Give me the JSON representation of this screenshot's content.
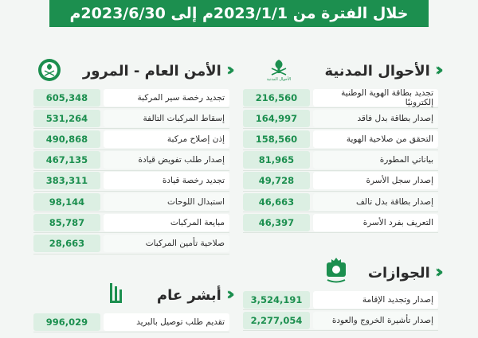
{
  "banner": {
    "title": "خلال الفترة من 2023/1/1م إلى 2023/6/30م"
  },
  "civil_affairs": {
    "title": "الأحوال المدنية",
    "emblem_caption": "الأحوال المدنية",
    "rows": [
      {
        "label": "تجديد بطاقة الهوية الوطنية إلكترونيًا",
        "value": "216,560"
      },
      {
        "label": "إصدار بطاقة بدل فاقد",
        "value": "164,997"
      },
      {
        "label": "التحقق من صلاحية الهوية",
        "value": "158,560"
      },
      {
        "label": "بياناتي المطورة",
        "value": "81,965"
      },
      {
        "label": "إصدار سجل الأسرة",
        "value": "49,728"
      },
      {
        "label": "إصدار بطاقة بدل تالف",
        "value": "46,663"
      },
      {
        "label": "التعريف بفرد الأسرة",
        "value": "46,397"
      }
    ]
  },
  "traffic": {
    "title": "الأمن العام - المرور",
    "rows": [
      {
        "label": "تجديد رخصة سير المركبة",
        "value": "605,348"
      },
      {
        "label": "إسقاط المركبات التالفة",
        "value": "531,264"
      },
      {
        "label": "إذن إصلاح مركبة",
        "value": "490,868"
      },
      {
        "label": "إصدار طلب تفويض قيادة",
        "value": "467,135"
      },
      {
        "label": "تجديد رخصة قيادة",
        "value": "383,311"
      },
      {
        "label": "استبدال اللوحات",
        "value": "98,144"
      },
      {
        "label": "مبايعة المركبات",
        "value": "85,787"
      },
      {
        "label": "صلاحية تأمين المركبات",
        "value": "28,663"
      }
    ]
  },
  "passports": {
    "title": "الجوازات",
    "rows": [
      {
        "label": "إصدار وتجديد الإقامة",
        "value": "3,524,191"
      },
      {
        "label": "إصدار تأشيرة الخروج والعودة",
        "value": "2,277,054"
      }
    ]
  },
  "absher": {
    "title": "أبشر عام",
    "rows": [
      {
        "label": "تقديم طلب توصيل بالبريد",
        "value": "996,029"
      }
    ]
  },
  "colors": {
    "primary": "#1c8f4f",
    "value_bg": "#dcefe3",
    "text": "#2b2b2b"
  },
  "icons": [
    "double-chevron-icon",
    "civil-affairs-emblem-icon",
    "traffic-emblem-icon",
    "passports-emblem-icon",
    "absher-logo-icon"
  ]
}
